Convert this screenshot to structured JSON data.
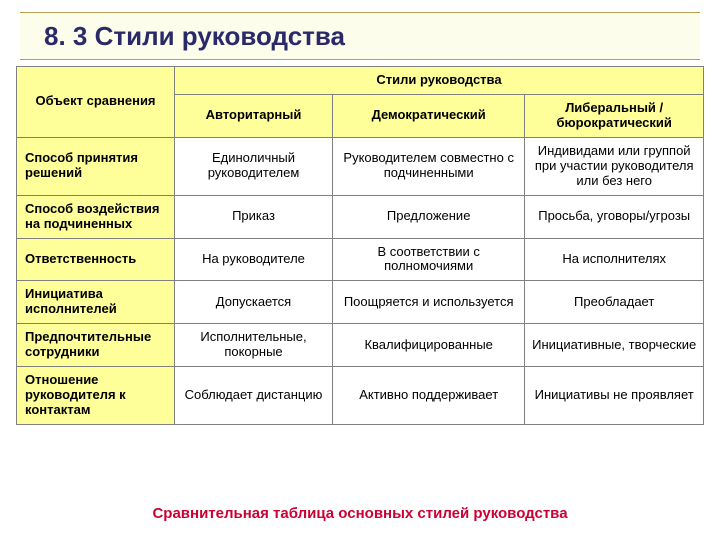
{
  "colors": {
    "accent_border": "#bfa050",
    "title_bg": "#fdfdeb",
    "title_color": "#2a2a6a",
    "header_bg": "#ffff99",
    "cell_border": "#808080",
    "caption_color": "#cc0033",
    "page_bg": "#ffffff"
  },
  "title": "8. 3 Стили руководства",
  "table": {
    "corner_label": "Объект сравнения",
    "styles_header": "Стили руководства",
    "columns": [
      "Авторитарный",
      "Демократический",
      "Либеральный / бюрократический"
    ],
    "rows": [
      {
        "head": "Способ принятия решений",
        "cells": [
          "Единоличный руководителем",
          "Руководителем совместно с подчиненными",
          "Индивидами или группой при участии руководителя или без него"
        ]
      },
      {
        "head": "Способ воздействия на подчиненных",
        "cells": [
          "Приказ",
          "Предложение",
          "Просьба, уговоры/угрозы"
        ]
      },
      {
        "head": "Ответственность",
        "cells": [
          "На руководителе",
          "В соответствии с полномочиями",
          "На исполнителях"
        ]
      },
      {
        "head": "Инициатива исполнителей",
        "cells": [
          "Допускается",
          "Поощряется и используется",
          "Преобладает"
        ]
      },
      {
        "head": "Предпочтительные сотрудники",
        "cells": [
          "Исполнительные, покорные",
          "Квалифицированные",
          "Инициативные, творческие"
        ]
      },
      {
        "head": "Отношение руководителя к контактам",
        "cells": [
          "Соблюдает дистанцию",
          "Активно поддерживает",
          "Инициативы не проявляет"
        ]
      }
    ]
  },
  "caption": "Сравнительная таблица основных стилей руководства"
}
